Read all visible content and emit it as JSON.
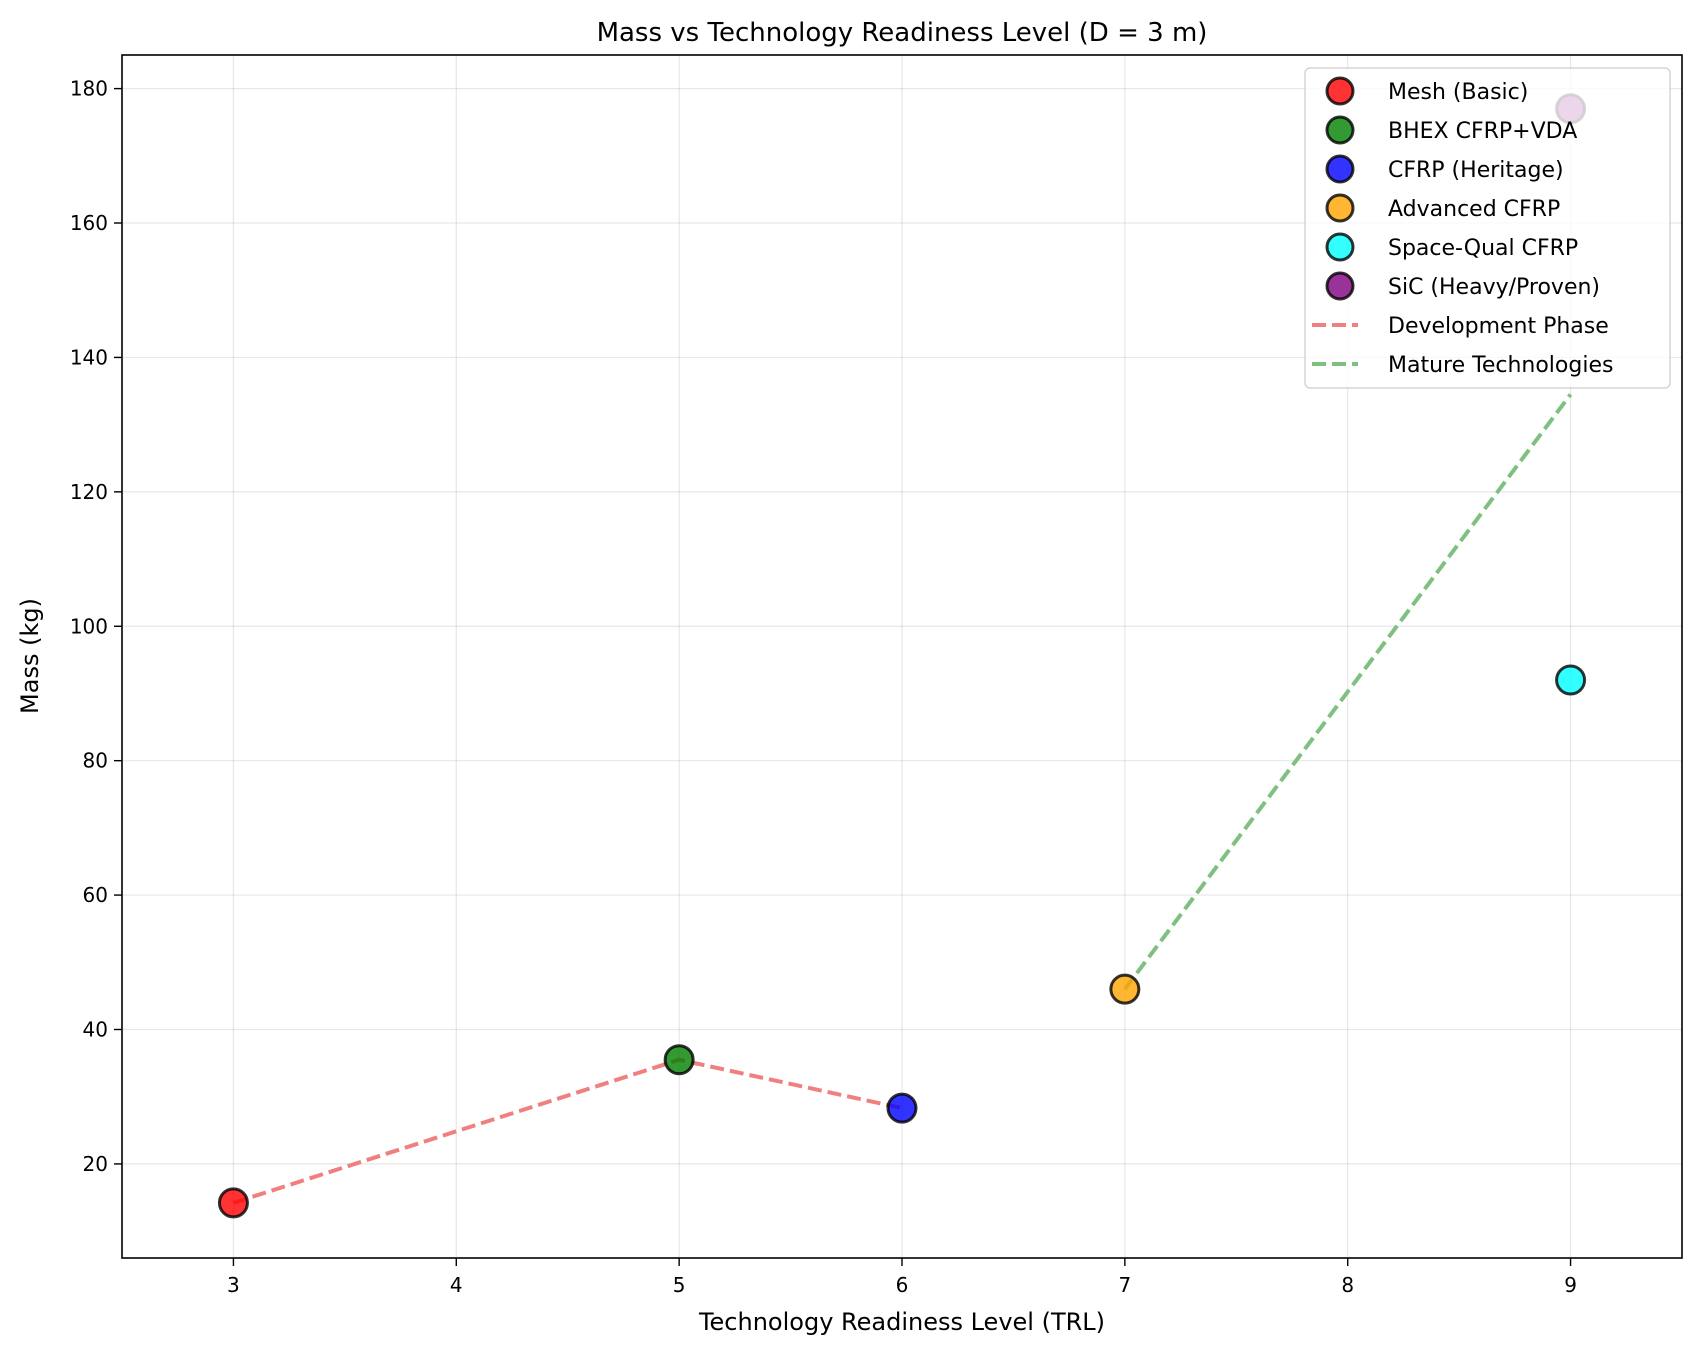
{
  "chart_data": {
    "type": "scatter",
    "title": "Mass vs Technology Readiness Level (D = 3 m)",
    "xlabel": "Technology Readiness Level (TRL)",
    "ylabel": "Mass (kg)",
    "xlim": [
      2.5,
      9.5
    ],
    "ylim": [
      6,
      185
    ],
    "xticks": [
      3,
      4,
      5,
      6,
      7,
      8,
      9
    ],
    "yticks": [
      20,
      40,
      60,
      80,
      100,
      120,
      140,
      160,
      180
    ],
    "grid": true,
    "legend_position": "top-right",
    "points": [
      {
        "name": "Mesh (Basic)",
        "x": 3,
        "y": 14.2,
        "color": "#ff0000"
      },
      {
        "name": "BHEX CFRP+VDA",
        "x": 5,
        "y": 35.5,
        "color": "#008000"
      },
      {
        "name": "CFRP (Heritage)",
        "x": 6,
        "y": 28.3,
        "color": "#0000ff"
      },
      {
        "name": "Advanced CFRP",
        "x": 7,
        "y": 46,
        "color": "#ffa500"
      },
      {
        "name": "Space-Qual CFRP",
        "x": 9,
        "y": 92,
        "color": "#00ffff"
      },
      {
        "name": "SiC (Heavy/Proven)",
        "x": 9,
        "y": 177,
        "color": "#800080"
      }
    ],
    "lines": [
      {
        "name": "Development Phase",
        "color": "#f08080",
        "x": [
          3,
          5,
          6
        ],
        "y": [
          14.2,
          35.5,
          28.3
        ]
      },
      {
        "name": "Mature Technologies",
        "color": "#7fbf7f",
        "x": [
          7,
          9
        ],
        "y": [
          46,
          134.5
        ]
      }
    ]
  }
}
